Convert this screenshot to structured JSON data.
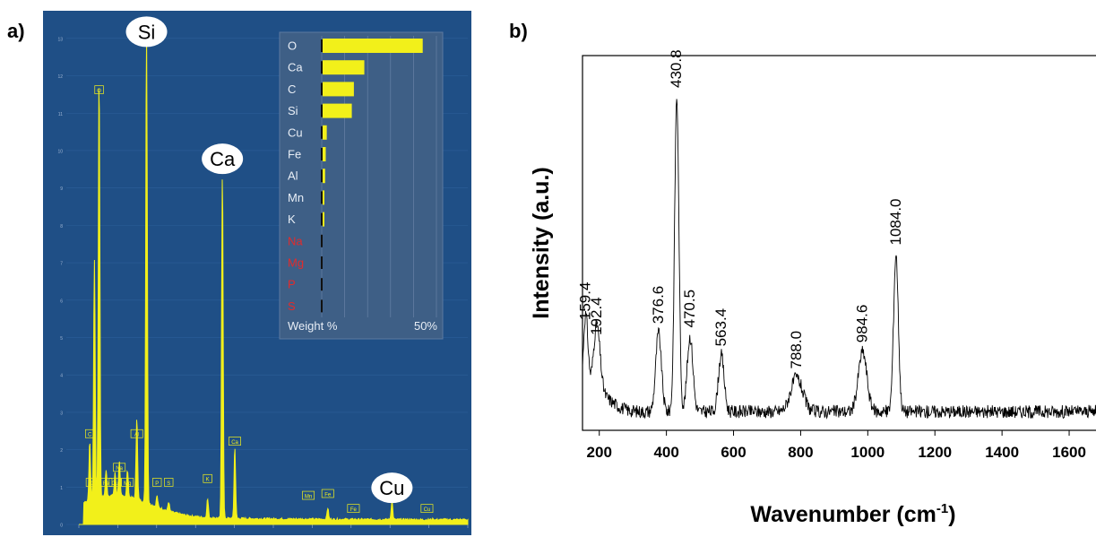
{
  "figure": {
    "panel_a_label": "a)",
    "panel_b_label": "b)"
  },
  "colors": {
    "eds_bg": "#1f4f86",
    "eds_inset_bg": "#3e5f86",
    "spectrum": "#f2f01a",
    "trace_red": "#e32b2b",
    "raman_line": "#000000"
  },
  "chart_data": [
    {
      "type": "area",
      "panel": "a",
      "yticks": [
        "0",
        "1",
        "2",
        "3",
        "4",
        "5",
        "6",
        "7",
        "8",
        "9",
        "10",
        "11",
        "12",
        "13"
      ],
      "xlim": [
        0,
        10
      ],
      "ylim": [
        0,
        13.5
      ],
      "callouts": [
        {
          "label": "Si",
          "x": 1.74,
          "y": 12.7
        },
        {
          "label": "Ca",
          "x": 3.69,
          "y": 9.3
        },
        {
          "label": "Cu",
          "x": 8.05,
          "y": 0.5
        }
      ],
      "peak_tags": [
        {
          "label": "O",
          "x": 0.52,
          "y": 11.4
        },
        {
          "label": "C",
          "x": 0.28,
          "y": 2.2
        },
        {
          "label": "Al",
          "x": 1.49,
          "y": 2.2
        },
        {
          "label": "Na",
          "x": 1.04,
          "y": 1.3
        },
        {
          "label": "Mg",
          "x": 1.25,
          "y": 0.9
        },
        {
          "label": "Cu",
          "x": 0.93,
          "y": 0.9
        },
        {
          "label": "Fe",
          "x": 0.7,
          "y": 0.9
        },
        {
          "label": "Ca",
          "x": 0.34,
          "y": 0.9
        },
        {
          "label": "P",
          "x": 2.01,
          "y": 0.9
        },
        {
          "label": "S",
          "x": 2.31,
          "y": 0.9
        },
        {
          "label": "K",
          "x": 3.31,
          "y": 1.0
        },
        {
          "label": "Ca",
          "x": 4.01,
          "y": 2.0
        },
        {
          "label": "Mn",
          "x": 5.9,
          "y": 0.55
        },
        {
          "label": "Fe",
          "x": 6.4,
          "y": 0.6
        },
        {
          "label": "Fe",
          "x": 7.06,
          "y": 0.2
        },
        {
          "label": "Cu",
          "x": 8.95,
          "y": 0.2
        }
      ],
      "peaks": [
        {
          "x": 0.28,
          "y": 1.6
        },
        {
          "x": 0.4,
          "y": 6.4
        },
        {
          "x": 0.52,
          "y": 11.4
        },
        {
          "x": 0.7,
          "y": 0.7
        },
        {
          "x": 0.93,
          "y": 0.6
        },
        {
          "x": 1.04,
          "y": 0.9
        },
        {
          "x": 1.25,
          "y": 0.7
        },
        {
          "x": 1.49,
          "y": 2.2
        },
        {
          "x": 1.74,
          "y": 12.7
        },
        {
          "x": 2.01,
          "y": 0.3
        },
        {
          "x": 2.31,
          "y": 0.25
        },
        {
          "x": 3.31,
          "y": 0.5
        },
        {
          "x": 3.69,
          "y": 9.3
        },
        {
          "x": 4.01,
          "y": 1.9
        },
        {
          "x": 6.4,
          "y": 0.3
        },
        {
          "x": 8.05,
          "y": 0.5
        }
      ],
      "inset": {
        "type": "bar",
        "categories": [
          "O",
          "Ca",
          "C",
          "Si",
          "Cu",
          "Fe",
          "Al",
          "Mn",
          "K",
          "Na",
          "Mg",
          "P",
          "S"
        ],
        "values": [
          48,
          20,
          15,
          14,
          2,
          1.5,
          1.2,
          0.6,
          0.6,
          0,
          0,
          0,
          0
        ],
        "not_detected": [
          "Na",
          "Mg",
          "P",
          "S"
        ],
        "xlim": [
          0,
          55
        ],
        "xlabel": "Weight %",
        "xmax_label": "50%"
      }
    },
    {
      "type": "line",
      "panel": "b",
      "xlabel": "Wavenumber (cm",
      "xlabel_superscript": "-1",
      "xlabel_close": ")",
      "ylabel": "Intensity (a.u.)",
      "xlim": [
        150,
        1680
      ],
      "ylim": [
        0,
        1
      ],
      "xticks": [
        200,
        400,
        600,
        800,
        1000,
        1200,
        1400,
        1600
      ],
      "baseline": 0.05,
      "peaks": [
        {
          "x": 159.4,
          "y": 0.22,
          "width": 10
        },
        {
          "x": 192.4,
          "y": 0.18,
          "width": 14
        },
        {
          "x": 376.6,
          "y": 0.21,
          "width": 12
        },
        {
          "x": 430.8,
          "y": 0.84,
          "width": 9
        },
        {
          "x": 470.5,
          "y": 0.2,
          "width": 12
        },
        {
          "x": 563.4,
          "y": 0.15,
          "width": 12
        },
        {
          "x": 788.0,
          "y": 0.09,
          "width": 25
        },
        {
          "x": 984.6,
          "y": 0.16,
          "width": 18
        },
        {
          "x": 1084.0,
          "y": 0.42,
          "width": 10
        }
      ],
      "peak_labels": [
        "159.4",
        "192.4",
        "376.6",
        "430.8",
        "470.5",
        "563.4",
        "788.0",
        "984.6",
        "1084.0"
      ]
    }
  ]
}
